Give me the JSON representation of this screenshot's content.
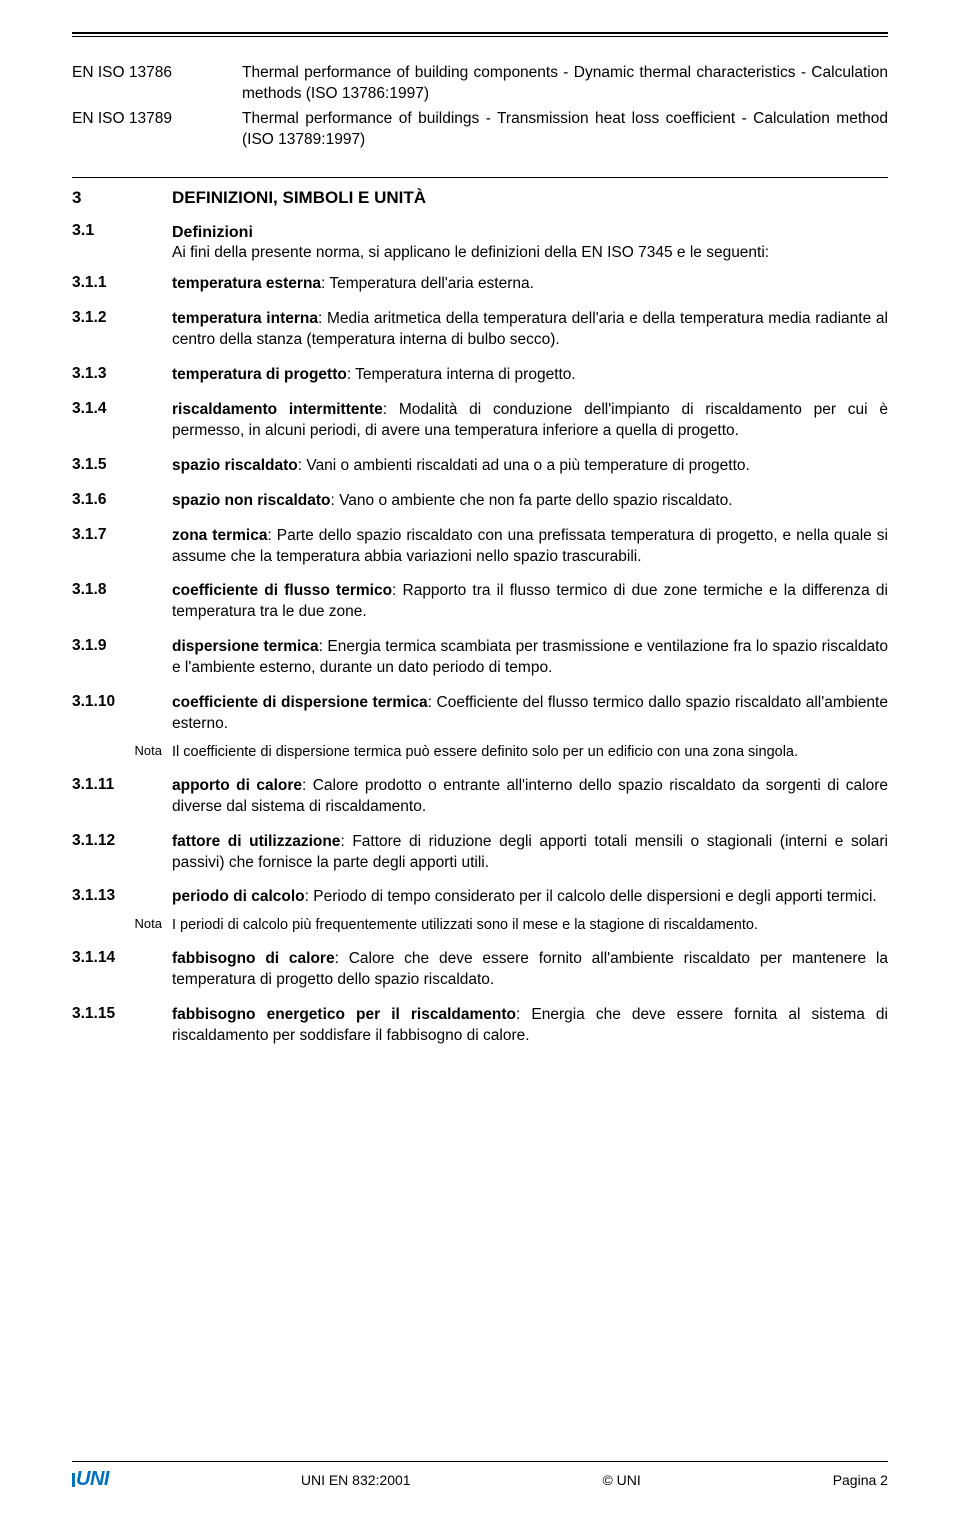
{
  "refs": [
    {
      "code": "EN ISO 13786",
      "text": "Thermal performance of building components - Dynamic thermal characteristics - Calculation methods (ISO 13786:1997)"
    },
    {
      "code": "EN ISO 13789",
      "text": "Thermal performance of buildings - Transmission heat loss coefficient - Calculation method (ISO 13789:1997)"
    }
  ],
  "section3": {
    "num": "3",
    "title": "DEFINIZIONI, SIMBOLI E UNITÀ"
  },
  "section31": {
    "num": "3.1",
    "title": "Definizioni",
    "intro": "Ai fini della presente norma, si applicano le definizioni della EN ISO 7345 e le seguenti:"
  },
  "defs": [
    {
      "num": "3.1.1",
      "term": "temperatura esterna",
      "text": ": Temperatura dell'aria esterna."
    },
    {
      "num": "3.1.2",
      "term": "temperatura interna",
      "text": ": Media aritmetica della temperatura dell'aria e della temperatura media radiante al centro della stanza (temperatura interna di bulbo secco)."
    },
    {
      "num": "3.1.3",
      "term": "temperatura di progetto",
      "text": ": Temperatura interna di progetto."
    },
    {
      "num": "3.1.4",
      "term": "riscaldamento intermittente",
      "text": ": Modalità di conduzione dell'impianto di riscaldamento per cui è permesso, in alcuni periodi, di avere una temperatura inferiore a quella di progetto."
    },
    {
      "num": "3.1.5",
      "term": "spazio riscaldato",
      "text": ": Vani o ambienti riscaldati ad una o a più temperature di progetto."
    },
    {
      "num": "3.1.6",
      "term": "spazio non riscaldato",
      "text": ": Vano o ambiente che non fa parte dello spazio riscaldato."
    },
    {
      "num": "3.1.7",
      "term": "zona termica",
      "text": ": Parte dello spazio riscaldato con una prefissata temperatura di progetto, e nella quale si assume che la temperatura abbia variazioni nello spazio trascurabili."
    },
    {
      "num": "3.1.8",
      "term": "coefficiente di flusso termico",
      "text": ": Rapporto tra il flusso termico di due zone termiche e la differenza di temperatura tra le due zone."
    },
    {
      "num": "3.1.9",
      "term": "dispersione termica",
      "text": ": Energia termica scambiata per trasmissione e ventilazione fra lo spazio riscaldato e l'ambiente esterno, durante un dato periodo di tempo."
    },
    {
      "num": "3.1.10",
      "term": "coefficiente di dispersione termica",
      "text": ": Coefficiente del flusso termico dallo spazio riscaldato all'ambiente esterno.",
      "note": "Il coefficiente di dispersione termica può essere definito solo per un edificio con una zona singola."
    },
    {
      "num": "3.1.11",
      "term": "apporto di calore",
      "text": ": Calore prodotto o entrante all'interno dello spazio riscaldato da sorgenti di calore diverse dal sistema di riscaldamento."
    },
    {
      "num": "3.1.12",
      "term": "fattore di utilizzazione",
      "text": ": Fattore di riduzione degli apporti totali mensili o stagionali (interni e solari passivi) che fornisce la parte degli apporti utili."
    },
    {
      "num": "3.1.13",
      "term": "periodo di calcolo",
      "text": ": Periodo di tempo considerato per il calcolo delle dispersioni e degli apporti termici.",
      "note": "I periodi di calcolo più frequentemente utilizzati sono il mese e la stagione di riscaldamento."
    },
    {
      "num": "3.1.14",
      "term": "fabbisogno di calore",
      "text": ": Calore che deve essere fornito all'ambiente riscaldato per mantenere la temperatura di progetto dello spazio riscaldato."
    },
    {
      "num": "3.1.15",
      "term": "fabbisogno energetico per il riscaldamento",
      "text": ": Energia che deve essere fornita al sistema di riscaldamento per soddisfare il fabbisogno di calore."
    }
  ],
  "note_label": "Nota",
  "footer": {
    "doc": "UNI EN 832:2001",
    "copyright": "© UNI",
    "page": "Pagina 2",
    "logo": "UNI"
  }
}
